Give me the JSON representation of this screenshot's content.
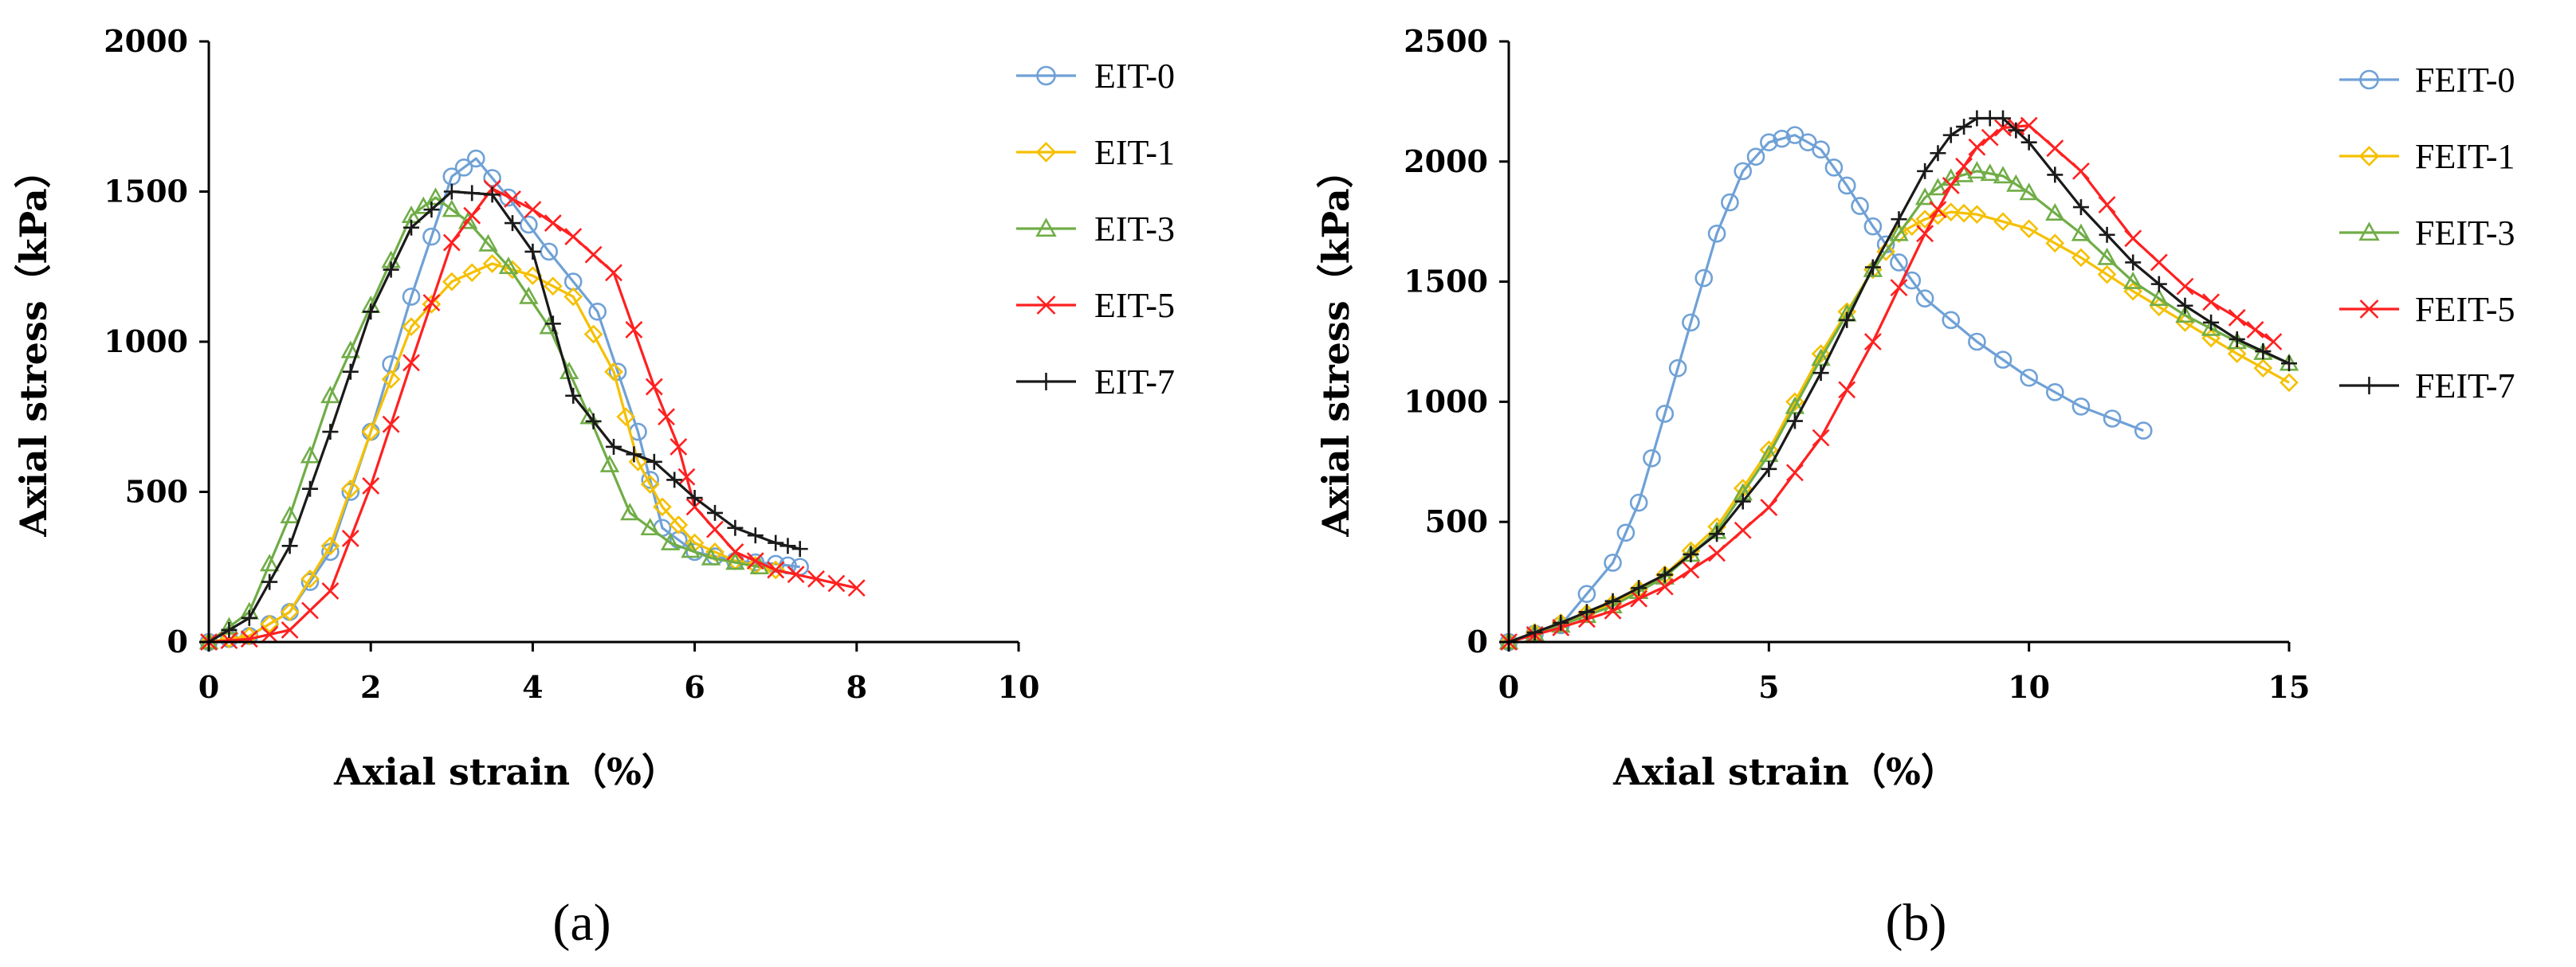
{
  "chart_data": [
    {
      "type": "line",
      "panel_label": "(a)",
      "xlabel": "Axial strain（%）",
      "ylabel": "Axial stress（kPa）",
      "xlim": [
        0,
        10
      ],
      "ylim": [
        0,
        2000
      ],
      "xticks": [
        0,
        2,
        4,
        6,
        8,
        10
      ],
      "yticks": [
        0,
        500,
        1000,
        1500,
        2000
      ],
      "legend": "top-right",
      "series": [
        {
          "name": "EIT-0",
          "color": "#6fa1d6",
          "marker": "circle",
          "x": [
            0,
            0.5,
            1.0,
            1.5,
            2.0,
            2.5,
            3.0,
            3.3,
            3.7,
            4.2,
            4.8,
            5.3,
            5.6,
            6.0,
            6.5,
            7.0,
            7.3
          ],
          "y": [
            0,
            20,
            100,
            300,
            700,
            1150,
            1550,
            1610,
            1480,
            1300,
            1100,
            700,
            380,
            300,
            270,
            260,
            250
          ]
        },
        {
          "name": "EIT-1",
          "color": "#f5c000",
          "marker": "diamond",
          "x": [
            0,
            0.5,
            1.0,
            1.5,
            2.0,
            2.5,
            3.0,
            3.5,
            4.0,
            4.5,
            5.0,
            5.3,
            5.6,
            6.0,
            6.5,
            7.0
          ],
          "y": [
            0,
            20,
            100,
            320,
            700,
            1050,
            1200,
            1260,
            1220,
            1150,
            900,
            600,
            450,
            330,
            270,
            240
          ]
        },
        {
          "name": "EIT-3",
          "color": "#70ad47",
          "marker": "triangle",
          "x": [
            0,
            0.5,
            1.0,
            1.5,
            2.0,
            2.5,
            2.8,
            3.2,
            3.7,
            4.2,
            4.7,
            5.2,
            5.7,
            6.2,
            6.8
          ],
          "y": [
            0,
            100,
            420,
            820,
            1120,
            1420,
            1480,
            1400,
            1250,
            1050,
            750,
            430,
            330,
            280,
            250
          ]
        },
        {
          "name": "EIT-5",
          "color": "#ff2020",
          "marker": "x",
          "x": [
            0,
            0.5,
            1.0,
            1.5,
            2.0,
            2.5,
            3.0,
            3.5,
            4.0,
            4.5,
            5.0,
            5.5,
            5.8,
            6.0,
            6.5,
            7.0,
            7.5,
            8.0
          ],
          "y": [
            0,
            10,
            40,
            170,
            520,
            930,
            1330,
            1510,
            1440,
            1350,
            1230,
            850,
            650,
            450,
            300,
            240,
            210,
            180
          ]
        },
        {
          "name": "EIT-7",
          "color": "#1a1a1a",
          "marker": "plus",
          "x": [
            0,
            0.5,
            1.0,
            1.5,
            2.0,
            2.5,
            3.0,
            3.5,
            4.0,
            4.5,
            5.0,
            5.5,
            6.0,
            6.5,
            7.0,
            7.3
          ],
          "y": [
            0,
            80,
            320,
            700,
            1100,
            1380,
            1500,
            1490,
            1300,
            820,
            650,
            600,
            480,
            380,
            330,
            310
          ]
        }
      ]
    },
    {
      "type": "line",
      "panel_label": "(b)",
      "xlabel": "Axial strain（%）",
      "ylabel": "Axial stress（kPa）",
      "xlim": [
        0,
        15
      ],
      "ylim": [
        0,
        2500
      ],
      "xticks": [
        0,
        5,
        10,
        15
      ],
      "yticks": [
        0,
        500,
        1000,
        1500,
        2000,
        2500
      ],
      "legend": "top-right",
      "series": [
        {
          "name": "FEIT-0",
          "color": "#6fa1d6",
          "marker": "circle",
          "x": [
            0,
            1.0,
            2.0,
            2.5,
            3.0,
            3.5,
            4.0,
            4.5,
            5.0,
            5.5,
            6.0,
            6.5,
            7.0,
            7.5,
            8.0,
            9.0,
            10.0,
            11.0,
            12.2
          ],
          "y": [
            0,
            70,
            330,
            580,
            950,
            1330,
            1700,
            1960,
            2080,
            2110,
            2050,
            1900,
            1730,
            1580,
            1430,
            1250,
            1100,
            980,
            880
          ]
        },
        {
          "name": "FEIT-1",
          "color": "#f5c000",
          "marker": "diamond",
          "x": [
            0,
            1,
            2,
            3,
            4,
            5,
            6,
            7,
            7.5,
            8,
            8.5,
            9,
            10,
            11,
            12,
            13,
            14,
            15
          ],
          "y": [
            0,
            80,
            160,
            280,
            480,
            800,
            1200,
            1550,
            1700,
            1760,
            1790,
            1780,
            1720,
            1600,
            1460,
            1330,
            1200,
            1080
          ]
        },
        {
          "name": "FEIT-3",
          "color": "#70ad47",
          "marker": "triangle",
          "x": [
            0,
            1,
            2,
            3,
            4,
            5,
            6,
            7,
            8,
            8.5,
            9,
            9.5,
            10,
            11,
            12,
            13,
            14,
            15
          ],
          "y": [
            0,
            70,
            150,
            270,
            460,
            780,
            1180,
            1550,
            1850,
            1930,
            1960,
            1940,
            1870,
            1700,
            1500,
            1360,
            1250,
            1160
          ]
        },
        {
          "name": "FEIT-5",
          "color": "#ff2020",
          "marker": "x",
          "x": [
            0,
            1,
            2,
            3,
            4,
            5,
            6,
            7,
            8,
            8.5,
            9,
            9.5,
            10,
            11,
            12,
            13,
            14,
            14.7
          ],
          "y": [
            0,
            60,
            130,
            230,
            370,
            560,
            850,
            1250,
            1700,
            1900,
            2060,
            2140,
            2150,
            1960,
            1680,
            1480,
            1350,
            1250
          ]
        },
        {
          "name": "FEIT-7",
          "color": "#1a1a1a",
          "marker": "plus",
          "x": [
            0,
            1,
            2,
            3,
            4,
            5,
            6,
            7,
            8,
            8.5,
            9,
            9.5,
            10,
            11,
            12,
            13,
            14,
            15
          ],
          "y": [
            0,
            80,
            170,
            280,
            450,
            720,
            1120,
            1560,
            1960,
            2110,
            2180,
            2180,
            2080,
            1810,
            1580,
            1400,
            1260,
            1160
          ]
        }
      ]
    }
  ]
}
